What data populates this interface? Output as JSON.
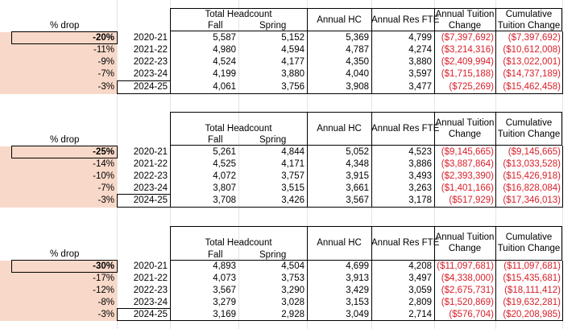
{
  "headers": {
    "pct_drop": "% drop",
    "total_headcount": "Total Headcount",
    "fall": "Fall",
    "spring": "Spring",
    "annual_hc": "Annual HC",
    "annual_res_fte": "Annual Res FTE",
    "annual_tuition_change_1": "Annual Tuition",
    "annual_tuition_change_2": "Change",
    "cumulative_tuition_change_1": "Cumulative",
    "cumulative_tuition_change_2": "Tuition Change"
  },
  "blocks": [
    {
      "rows": [
        {
          "pct": "-20%",
          "year": "2020-21",
          "fall": "5,587",
          "spring": "5,152",
          "annual_hc": "5,369",
          "res_fte": "4,799",
          "annual_change": "($7,397,692)",
          "cumulative": "($7,397,692)"
        },
        {
          "pct": "-11%",
          "year": "2021-22",
          "fall": "4,980",
          "spring": "4,594",
          "annual_hc": "4,787",
          "res_fte": "4,274",
          "annual_change": "($3,214,316)",
          "cumulative": "($10,612,008)"
        },
        {
          "pct": "-9%",
          "year": "2022-23",
          "fall": "4,524",
          "spring": "4,177",
          "annual_hc": "4,350",
          "res_fte": "3,880",
          "annual_change": "($2,409,994)",
          "cumulative": "($13,022,001)"
        },
        {
          "pct": "-7%",
          "year": "2023-24",
          "fall": "4,199",
          "spring": "3,880",
          "annual_hc": "4,040",
          "res_fte": "3,597",
          "annual_change": "($1,715,188)",
          "cumulative": "($14,737,189)"
        },
        {
          "pct": "-3%",
          "year": "2024-25",
          "fall": "4,061",
          "spring": "3,756",
          "annual_hc": "3,908",
          "res_fte": "3,477",
          "annual_change": "($725,269)",
          "cumulative": "($15,462,458)"
        }
      ]
    },
    {
      "rows": [
        {
          "pct": "-25%",
          "year": "2020-21",
          "fall": "5,261",
          "spring": "4,844",
          "annual_hc": "5,052",
          "res_fte": "4,523",
          "annual_change": "($9,145,665)",
          "cumulative": "($9,145,665)"
        },
        {
          "pct": "-14%",
          "year": "2021-22",
          "fall": "4,525",
          "spring": "4,171",
          "annual_hc": "4,348",
          "res_fte": "3,886",
          "annual_change": "($3,887,864)",
          "cumulative": "($13,033,528)"
        },
        {
          "pct": "-10%",
          "year": "2022-23",
          "fall": "4,072",
          "spring": "3,757",
          "annual_hc": "3,915",
          "res_fte": "3,493",
          "annual_change": "($2,393,390)",
          "cumulative": "($15,426,918)"
        },
        {
          "pct": "-7%",
          "year": "2023-24",
          "fall": "3,807",
          "spring": "3,515",
          "annual_hc": "3,661",
          "res_fte": "3,263",
          "annual_change": "($1,401,166)",
          "cumulative": "($16,828,084)"
        },
        {
          "pct": "-3%",
          "year": "2024-25",
          "fall": "3,708",
          "spring": "3,426",
          "annual_hc": "3,567",
          "res_fte": "3,178",
          "annual_change": "($517,929)",
          "cumulative": "($17,346,013)"
        }
      ]
    },
    {
      "rows": [
        {
          "pct": "-30%",
          "year": "2020-21",
          "fall": "4,893",
          "spring": "4,504",
          "annual_hc": "4,699",
          "res_fte": "4,208",
          "annual_change": "($11,097,681)",
          "cumulative": "($11,097,681)"
        },
        {
          "pct": "-17%",
          "year": "2021-22",
          "fall": "4,073",
          "spring": "3,753",
          "annual_hc": "3,913",
          "res_fte": "3,497",
          "annual_change": "($4,338,000)",
          "cumulative": "($15,435,681)"
        },
        {
          "pct": "-12%",
          "year": "2022-23",
          "fall": "3,567",
          "spring": "3,290",
          "annual_hc": "3,429",
          "res_fte": "3,059",
          "annual_change": "($2,675,731)",
          "cumulative": "($18,111,412)"
        },
        {
          "pct": "-8%",
          "year": "2023-24",
          "fall": "3,279",
          "spring": "3,028",
          "annual_hc": "3,153",
          "res_fte": "2,809",
          "annual_change": "($1,520,869)",
          "cumulative": "($19,632,281)"
        },
        {
          "pct": "-3%",
          "year": "2024-25",
          "fall": "3,169",
          "spring": "2,928",
          "annual_hc": "3,049",
          "res_fte": "2,714",
          "annual_change": "($576,704)",
          "cumulative": "($20,208,985)"
        }
      ]
    }
  ],
  "colors": {
    "negative": "#d9202a",
    "highlight": "#f8d9c9"
  }
}
